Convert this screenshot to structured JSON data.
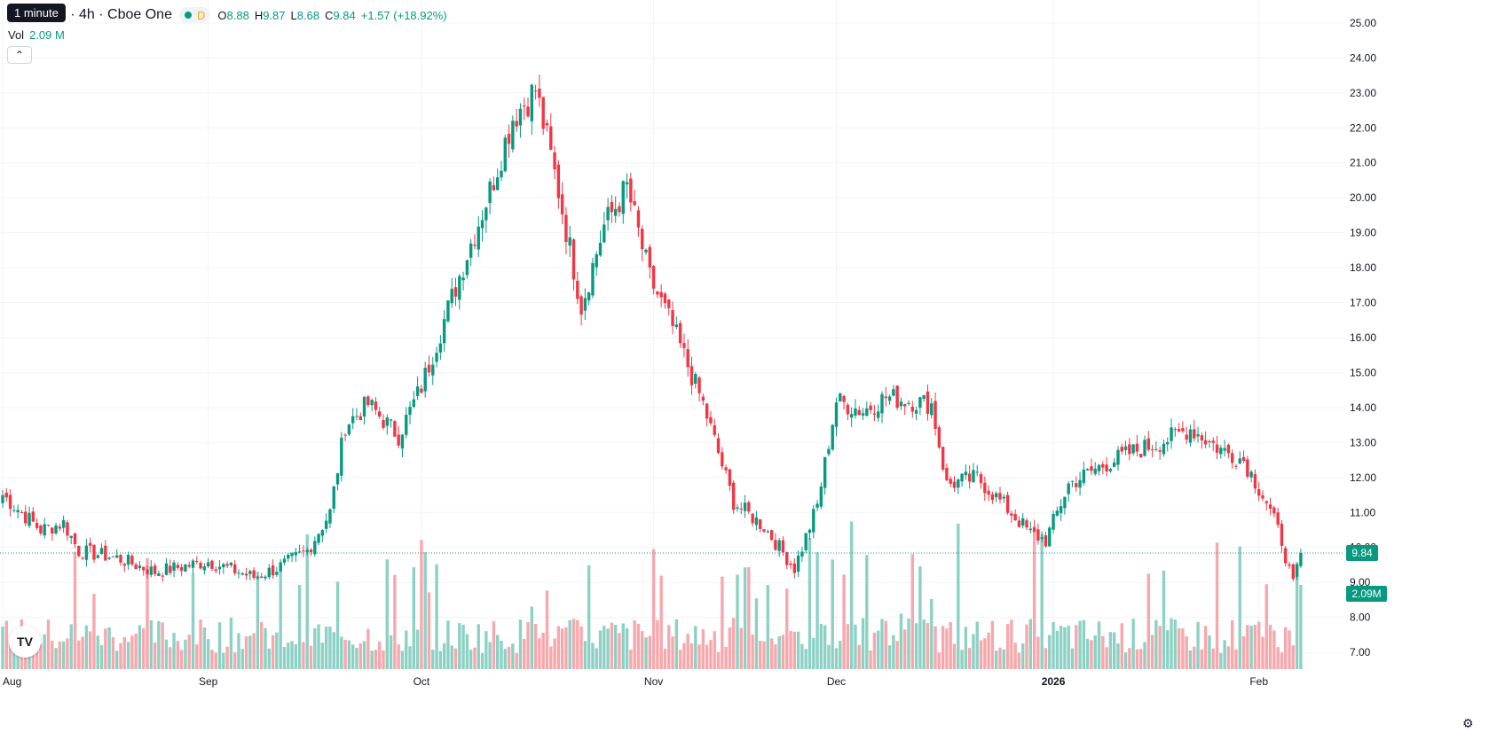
{
  "legend": {
    "title": "park, Inc. · 4h · Cboe One",
    "market_badge": "D",
    "o_label": "O",
    "o_value": "8.88",
    "h_label": "H",
    "h_value": "9.87",
    "l_label": "L",
    "l_value": "8.68",
    "c_label": "C",
    "c_value": "9.84",
    "change": "+1.57 (+18.92%)"
  },
  "tooltip": "1 minute",
  "volume": {
    "label": "Vol",
    "value": "2.09 M"
  },
  "collapse_icon": "chevron-up-icon",
  "logo_text": "TV",
  "settings_icon": "gear-icon",
  "colors": {
    "up": "#089981",
    "down": "#f23645",
    "up_vol": "#8dd1c5",
    "down_vol": "#f7a8ad",
    "grid": "#f0f3fa",
    "price_line": "#089981"
  },
  "chart_data": {
    "type": "candlestick",
    "y_axis": {
      "ticks": [
        "25.00",
        "24.00",
        "23.00",
        "22.00",
        "21.00",
        "20.00",
        "19.00",
        "18.00",
        "17.00",
        "16.00",
        "15.00",
        "14.00",
        "13.00",
        "12.00",
        "11.00",
        "10.00",
        "9.00",
        "8.00",
        "7.00"
      ],
      "range": [
        6.8,
        25.2
      ]
    },
    "x_axis": {
      "labels": [
        "Aug",
        "Sep",
        "Oct",
        "Nov",
        "Dec",
        "2026",
        "Feb"
      ],
      "label_bar_index": [
        0,
        54,
        110,
        171,
        219,
        276,
        330
      ]
    },
    "last_price_label": "9.84",
    "last_volume_label": "2.09M",
    "current_price": 9.84,
    "bars": 342,
    "anchors": [
      [
        0,
        11.5
      ],
      [
        10,
        10.5
      ],
      [
        16,
        10.7
      ],
      [
        20,
        9.9
      ],
      [
        30,
        9.7
      ],
      [
        40,
        9.3
      ],
      [
        54,
        9.6
      ],
      [
        66,
        9.15
      ],
      [
        72,
        9.4
      ],
      [
        80,
        9.9
      ],
      [
        86,
        11.0
      ],
      [
        90,
        13.5
      ],
      [
        96,
        14.1
      ],
      [
        104,
        13.2
      ],
      [
        110,
        14.6
      ],
      [
        116,
        16.5
      ],
      [
        122,
        18.4
      ],
      [
        128,
        20.2
      ],
      [
        134,
        22.3
      ],
      [
        140,
        23.1
      ],
      [
        146,
        20.2
      ],
      [
        152,
        16.9
      ],
      [
        158,
        19.2
      ],
      [
        164,
        20.3
      ],
      [
        170,
        17.7
      ],
      [
        176,
        16.3
      ],
      [
        184,
        14.1
      ],
      [
        192,
        11.3
      ],
      [
        200,
        10.6
      ],
      [
        208,
        9.4
      ],
      [
        214,
        11.2
      ],
      [
        219,
        14.2
      ],
      [
        226,
        13.9
      ],
      [
        232,
        14.3
      ],
      [
        244,
        14.1
      ],
      [
        248,
        11.8
      ],
      [
        256,
        12.0
      ],
      [
        264,
        11.1
      ],
      [
        270,
        10.4
      ],
      [
        274,
        10.2
      ],
      [
        280,
        11.8
      ],
      [
        288,
        12.3
      ],
      [
        296,
        12.7
      ],
      [
        304,
        13.0
      ],
      [
        312,
        13.4
      ],
      [
        320,
        12.8
      ],
      [
        326,
        12.5
      ],
      [
        332,
        11.3
      ],
      [
        336,
        10.2
      ],
      [
        339,
        8.9
      ],
      [
        341,
        9.84
      ]
    ]
  }
}
